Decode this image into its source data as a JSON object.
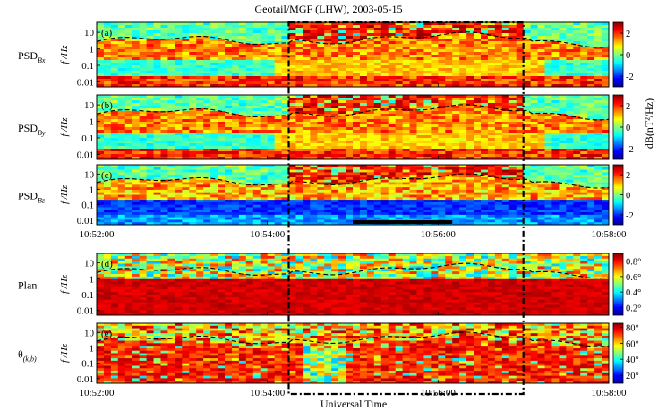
{
  "chart_data": {
    "type": "heatmap",
    "title": "Geotail/MGF (LHW), 2003-05-15",
    "xlabel": "Universal Time",
    "x_tick_labels": [
      "10:52:00",
      "10:54:00",
      "10:56:00",
      "10:58:00"
    ],
    "x_range": [
      "10:52:00",
      "10:58:00"
    ],
    "highlight_interval": [
      "10:54:15",
      "10:57:00"
    ],
    "marked_bar": [
      "10:55:00",
      "10:56:10"
    ],
    "y_scale": "log",
    "y_range_hz": [
      0.005,
      40
    ],
    "y_tick_labels": [
      "10",
      "1",
      "0.1",
      "0.01"
    ],
    "ylabel": "f /Hz",
    "panels": [
      {
        "letter": "(a)",
        "ylabel_name": "PSD",
        "ylabel_sub": "Bx",
        "colorbar_ticks": [
          "2",
          "0",
          "-2"
        ],
        "colorbar_range": [
          -3,
          3
        ],
        "colormap": "jet"
      },
      {
        "letter": "(b)",
        "ylabel_name": "PSD",
        "ylabel_sub": "By",
        "colorbar_ticks": [
          "2",
          "0",
          "-2"
        ],
        "colorbar_range": [
          -3,
          3
        ],
        "colormap": "jet"
      },
      {
        "letter": "(c)",
        "ylabel_name": "PSD",
        "ylabel_sub": "Bz",
        "colorbar_ticks": [
          "2",
          "0",
          "-2"
        ],
        "colorbar_range": [
          -3,
          3
        ],
        "colormap": "jet"
      },
      {
        "letter": "(d)",
        "ylabel_name": "Plan",
        "ylabel_sub": "",
        "colorbar_ticks": [
          "0.8°",
          "0.6°",
          "0.4°",
          "0.2°"
        ],
        "colorbar_range": [
          0.1,
          0.9
        ],
        "colormap": "jet"
      },
      {
        "letter": "(e)",
        "ylabel_name": "θ",
        "ylabel_sub": "(k,b)",
        "colorbar_ticks": [
          "80°",
          "60°",
          "40°",
          "20°"
        ],
        "colorbar_range": [
          10,
          85
        ],
        "colormap": "jet"
      }
    ],
    "colorbar_label": "dB(nT²/Hz)"
  }
}
